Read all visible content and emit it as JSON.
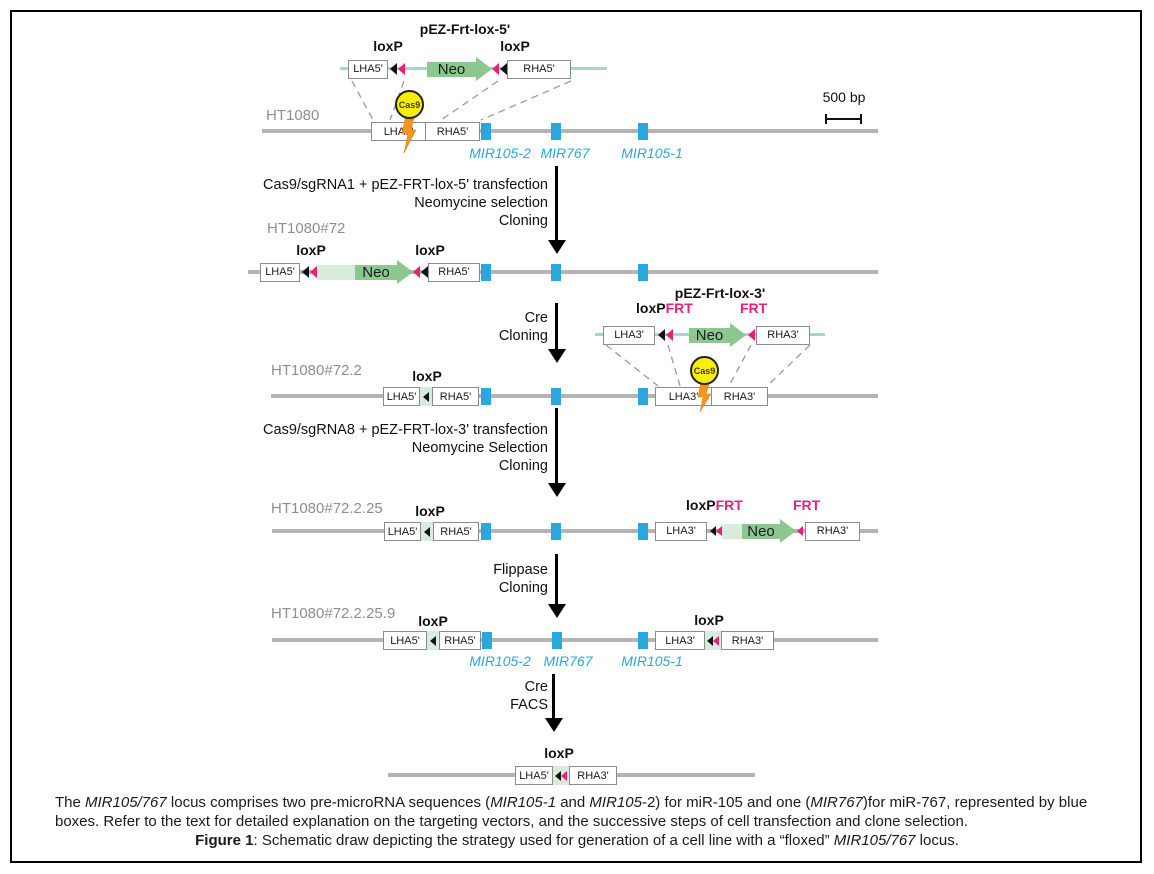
{
  "palette": {
    "genomic_line": "#b4b4b4",
    "vector_line": "#a6d6ce",
    "cassette_fill": "#d7ecdf",
    "neo_green": "#8cc88e",
    "loxp_frt_pink": "#ed1e79",
    "mir_blue": "#29a8dd",
    "cas9_yellow": "#f9ee0a",
    "bolt_orange": "#f7941d",
    "cell_line_gray": "#8f8f8f"
  },
  "scale_bar": {
    "label": "500 bp"
  },
  "vec5": {
    "title": "pEZ-Frt-lox-5'",
    "loxp_left": "loxP",
    "loxp_right": "loxP",
    "lha": "LHA5'",
    "neo": "Neo",
    "rha": "RHA5'"
  },
  "row1": {
    "cell_line": "HT1080",
    "lha": "LHA5'",
    "rha": "RHA5'",
    "cas9": "Cas9",
    "mir": {
      "m2": "MIR105-2",
      "m767": "MIR767",
      "m1": "MIR105-1"
    }
  },
  "step1": {
    "line1": "Cas9/sgRNA1 + pEZ-FRT-lox-5' transfection",
    "line2": "Neomycine selection",
    "line3": "Cloning"
  },
  "row2": {
    "cell_line": "HT1080#72",
    "loxp_left": "loxP",
    "loxp_right": "loxP",
    "lha": "LHA5'",
    "neo": "Neo",
    "rha": "RHA5'"
  },
  "step2": {
    "line1": "Cre",
    "line2": "Cloning"
  },
  "row3": {
    "cell_line": "HT1080#72.2",
    "loxp": "loxP",
    "lha5": "LHA5'",
    "rha5": "RHA5'",
    "lha3": "LHA3'",
    "rha3": "RHA3'",
    "cas9": "Cas9"
  },
  "vec3": {
    "title": "pEZ-Frt-lox-3'",
    "loxp": "loxP",
    "frt_left": "FRT",
    "frt_right": "FRT",
    "lha": "LHA3'",
    "neo": "Neo",
    "rha": "RHA3'"
  },
  "step3": {
    "line1": "Cas9/sgRNA8 + pEZ-FRT-lox-3' transfection",
    "line2": "Neomycine Selection",
    "line3": "Cloning"
  },
  "row4": {
    "cell_line": "HT1080#72.2.25",
    "loxp_left": "loxP",
    "loxp_right": "loxP",
    "frt_mid": "FRT",
    "frt_right": "FRT",
    "lha5": "LHA5'",
    "rha5": "RHA5'",
    "lha3": "LHA3'",
    "neo": "Neo",
    "rha3": "RHA3'"
  },
  "step4": {
    "line1": "Flippase",
    "line2": "Cloning"
  },
  "row5": {
    "cell_line": "HT1080#72.2.25.9",
    "loxp_left": "loxP",
    "loxp_right": "loxP",
    "lha5": "LHA5'",
    "rha5": "RHA5'",
    "lha3": "LHA3'",
    "rha3": "RHA3'",
    "mir": {
      "m2": "MIR105-2",
      "m767": "MIR767",
      "m1": "MIR105-1"
    }
  },
  "step5": {
    "line1": "Cre",
    "line2": "FACS"
  },
  "row6": {
    "loxp": "loxP",
    "lha": "LHA5'",
    "rha": "RHA3'"
  },
  "caption": {
    "line1": [
      {
        "t": "The "
      },
      {
        "t": "MIR105/767",
        "i": true
      },
      {
        "t": " locus comprises two pre-microRNA sequences ("
      },
      {
        "t": "MIR105-1",
        "i": true
      },
      {
        "t": " and "
      },
      {
        "t": "MIR105",
        "i": true
      },
      {
        "t": "-2) for miR-105 and one ("
      },
      {
        "t": "MIR767",
        "i": true
      },
      {
        "t": ")for miR-767, represented by blue"
      }
    ],
    "line2": "boxes. Refer to the text for detailed explanation on the targeting vectors, and the successive steps of cell transfection and clone selection.",
    "line3": [
      {
        "t": "Figure 1",
        "b": true
      },
      {
        "t": ": Schematic draw depicting the strategy used for generation of a cell line with a “floxed” "
      },
      {
        "t": "MIR105/767",
        "i": true
      },
      {
        "t": " locus."
      }
    ]
  }
}
